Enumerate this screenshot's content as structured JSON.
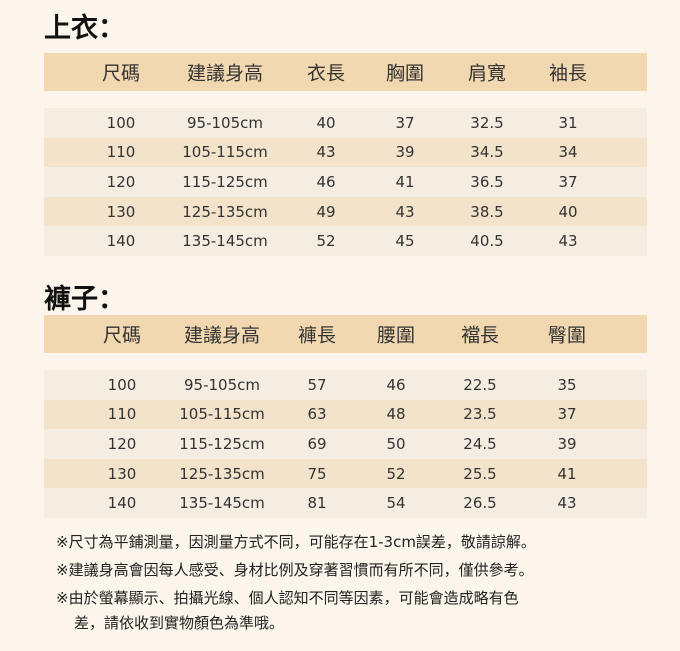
{
  "top": {
    "title": "上衣：",
    "headers": [
      "尺碼",
      "建議身高",
      "衣長",
      "胸圍",
      "肩寬",
      "袖長"
    ],
    "rows": [
      [
        "100",
        "95-105cm",
        "40",
        "37",
        "32.5",
        "31"
      ],
      [
        "110",
        "105-115cm",
        "43",
        "39",
        "34.5",
        "34"
      ],
      [
        "120",
        "115-125cm",
        "46",
        "41",
        "36.5",
        "37"
      ],
      [
        "130",
        "125-135cm",
        "49",
        "43",
        "38.5",
        "40"
      ],
      [
        "140",
        "135-145cm",
        "52",
        "45",
        "40.5",
        "43"
      ]
    ]
  },
  "bottom": {
    "title": "褲子：",
    "headers": [
      "尺碼",
      "建議身高",
      "褲長",
      "腰圍",
      "襠長",
      "臀圍"
    ],
    "rows": [
      [
        "100",
        "95-105cm",
        "57",
        "46",
        "22.5",
        "35"
      ],
      [
        "110",
        "105-115cm",
        "63",
        "48",
        "23.5",
        "37"
      ],
      [
        "120",
        "115-125cm",
        "69",
        "50",
        "24.5",
        "39"
      ],
      [
        "130",
        "125-135cm",
        "75",
        "52",
        "25.5",
        "41"
      ],
      [
        "140",
        "135-145cm",
        "81",
        "54",
        "26.5",
        "43"
      ]
    ]
  },
  "notes": [
    "※尺寸為平鋪測量，因測量方式不同，可能存在1-3cm誤差，敬請諒解。",
    "※建議身高會因每人感受、身材比例及穿著習慣而有所不同，僅供參考。",
    "※由於螢幕顯示、拍攝光線、個人認知不同等因素，可能會造成略有色",
    "差，請依收到實物顏色為準哦。"
  ]
}
